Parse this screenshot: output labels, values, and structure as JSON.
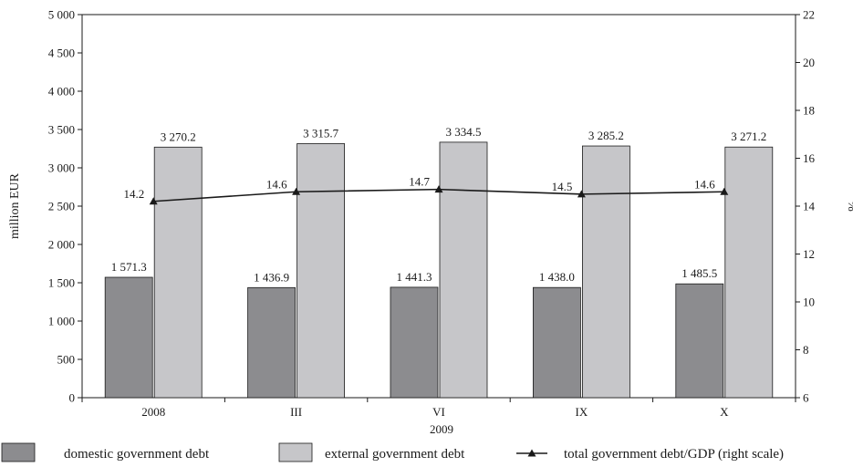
{
  "chart_data": {
    "type": "bar",
    "categories": [
      "2008",
      "III",
      "VI",
      "IX",
      "X"
    ],
    "category_group_label": "2009",
    "series": [
      {
        "name": "domestic government debt",
        "kind": "bar",
        "axis": "left",
        "color": "#8c8c8f",
        "values": [
          1571.3,
          1436.9,
          1441.3,
          1438.0,
          1485.5
        ],
        "labels": [
          "1 571.3",
          "1 436.9",
          "1 441.3",
          "1 438.0",
          "1 485.5"
        ]
      },
      {
        "name": "external government debt",
        "kind": "bar",
        "axis": "left",
        "color": "#c6c6c9",
        "values": [
          3270.2,
          3315.7,
          3334.5,
          3285.2,
          3271.2
        ],
        "labels": [
          "3 270.2",
          "3 315.7",
          "3 334.5",
          "3 285.2",
          "3 271.2"
        ]
      },
      {
        "name": "total government debt/GDP (right scale)",
        "kind": "line",
        "axis": "right",
        "color": "#1a1a1a",
        "values": [
          14.2,
          14.6,
          14.7,
          14.5,
          14.6
        ],
        "labels": [
          "14.2",
          "14.6",
          "14.7",
          "14.5",
          "14.6"
        ]
      }
    ],
    "ylabel": "million EUR",
    "y2label": "%",
    "ylim": [
      0,
      5000
    ],
    "y2lim": [
      6,
      22
    ],
    "yticks": [
      0,
      500,
      1000,
      1500,
      2000,
      2500,
      3000,
      3500,
      4000,
      4500,
      5000
    ],
    "ytick_labels": [
      "0",
      "500",
      "1 000",
      "1 500",
      "2 000",
      "2 500",
      "3 000",
      "3 500",
      "4 000",
      "4 500",
      "5 000"
    ],
    "y2ticks": [
      6,
      8,
      10,
      12,
      14,
      16,
      18,
      20,
      22
    ],
    "y2tick_labels": [
      "6",
      "8",
      "10",
      "12",
      "14",
      "16",
      "18",
      "20",
      "22"
    ],
    "grid": false,
    "legend_position": "bottom"
  }
}
